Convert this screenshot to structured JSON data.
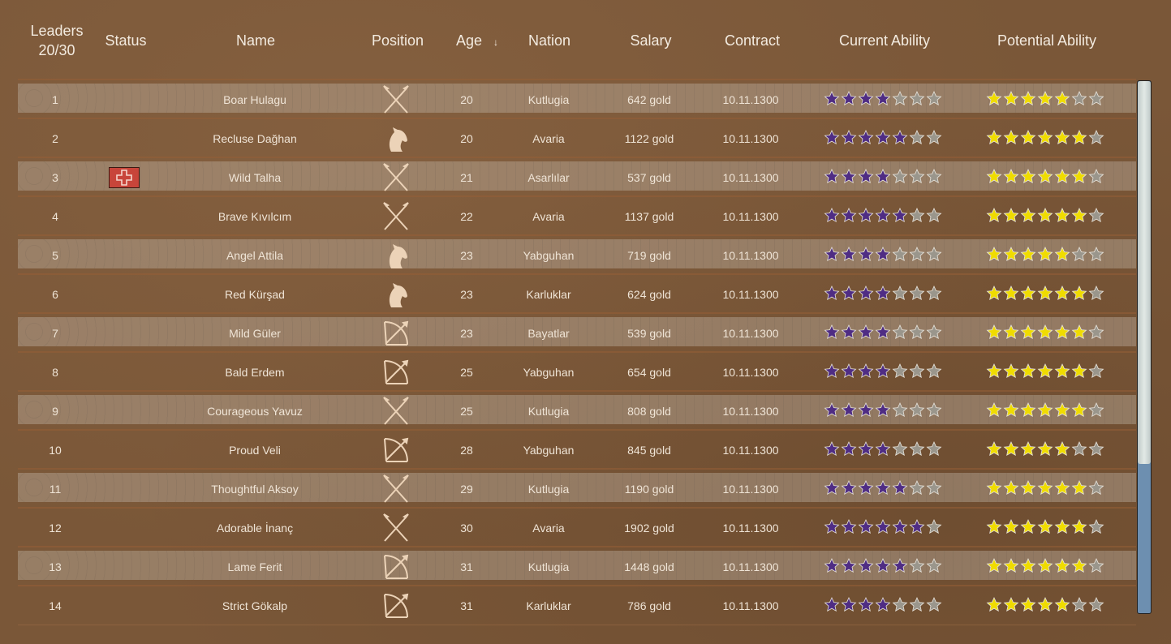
{
  "header": {
    "leaders_label": "Leaders",
    "leaders_count": "20/30",
    "status": "Status",
    "name": "Name",
    "position": "Position",
    "age": "Age",
    "sort_indicator": "↓",
    "nation": "Nation",
    "salary": "Salary",
    "contract": "Contract",
    "current_ability": "Current Ability",
    "potential_ability": "Potential Ability"
  },
  "colors": {
    "current_star": "#4f2d84",
    "potential_star": "#f0dc00",
    "empty_star": "#9a968c",
    "status_injury": "#c8453a"
  },
  "max_stars": 7,
  "scrollbar": {
    "position_fraction": 0.0,
    "visible_fraction": 0.72
  },
  "rows": [
    {
      "num": "1",
      "status": "",
      "name": "Boar Hulagu",
      "position": "spears-icon",
      "age": "20",
      "nation": "Kutlugia",
      "salary": "642 gold",
      "contract": "10.11.1300",
      "ca": 4,
      "pa": 5
    },
    {
      "num": "2",
      "status": "",
      "name": "Recluse Dağhan",
      "position": "horse-icon",
      "age": "20",
      "nation": "Avaria",
      "salary": "1122 gold",
      "contract": "10.11.1300",
      "ca": 5,
      "pa": 6
    },
    {
      "num": "3",
      "status": "injury-icon",
      "name": "Wild Talha",
      "position": "spears-icon",
      "age": "21",
      "nation": "Asarlılar",
      "salary": "537 gold",
      "contract": "10.11.1300",
      "ca": 4,
      "pa": 6
    },
    {
      "num": "4",
      "status": "",
      "name": "Brave Kıvılcım",
      "position": "spears-icon",
      "age": "22",
      "nation": "Avaria",
      "salary": "1137 gold",
      "contract": "10.11.1300",
      "ca": 5,
      "pa": 6
    },
    {
      "num": "5",
      "status": "",
      "name": "Angel Attila",
      "position": "horse-icon",
      "age": "23",
      "nation": "Yabguhan",
      "salary": "719 gold",
      "contract": "10.11.1300",
      "ca": 4,
      "pa": 5
    },
    {
      "num": "6",
      "status": "",
      "name": "Red Kürşad",
      "position": "horse-icon",
      "age": "23",
      "nation": "Karluklar",
      "salary": "624 gold",
      "contract": "10.11.1300",
      "ca": 4,
      "pa": 6
    },
    {
      "num": "7",
      "status": "",
      "name": "Mild Güler",
      "position": "bow-icon",
      "age": "23",
      "nation": "Bayatlar",
      "salary": "539 gold",
      "contract": "10.11.1300",
      "ca": 4,
      "pa": 6
    },
    {
      "num": "8",
      "status": "",
      "name": "Bald Erdem",
      "position": "bow-icon",
      "age": "25",
      "nation": "Yabguhan",
      "salary": "654 gold",
      "contract": "10.11.1300",
      "ca": 4,
      "pa": 6
    },
    {
      "num": "9",
      "status": "",
      "name": "Courageous Yavuz",
      "position": "spears-icon",
      "age": "25",
      "nation": "Kutlugia",
      "salary": "808 gold",
      "contract": "10.11.1300",
      "ca": 4,
      "pa": 6
    },
    {
      "num": "10",
      "status": "",
      "name": "Proud Veli",
      "position": "bow-icon",
      "age": "28",
      "nation": "Yabguhan",
      "salary": "845 gold",
      "contract": "10.11.1300",
      "ca": 4,
      "pa": 5
    },
    {
      "num": "11",
      "status": "",
      "name": "Thoughtful Aksoy",
      "position": "spears-icon",
      "age": "29",
      "nation": "Kutlugia",
      "salary": "1190 gold",
      "contract": "10.11.1300",
      "ca": 5,
      "pa": 6
    },
    {
      "num": "12",
      "status": "",
      "name": "Adorable İnanç",
      "position": "spears-icon",
      "age": "30",
      "nation": "Avaria",
      "salary": "1902 gold",
      "contract": "10.11.1300",
      "ca": 6,
      "pa": 6
    },
    {
      "num": "13",
      "status": "",
      "name": "Lame Ferit",
      "position": "bow-icon",
      "age": "31",
      "nation": "Kutlugia",
      "salary": "1448 gold",
      "contract": "10.11.1300",
      "ca": 5,
      "pa": 6
    },
    {
      "num": "14",
      "status": "",
      "name": "Strict Gökalp",
      "position": "bow-icon",
      "age": "31",
      "nation": "Karluklar",
      "salary": "786 gold",
      "contract": "10.11.1300",
      "ca": 4,
      "pa": 5
    }
  ]
}
